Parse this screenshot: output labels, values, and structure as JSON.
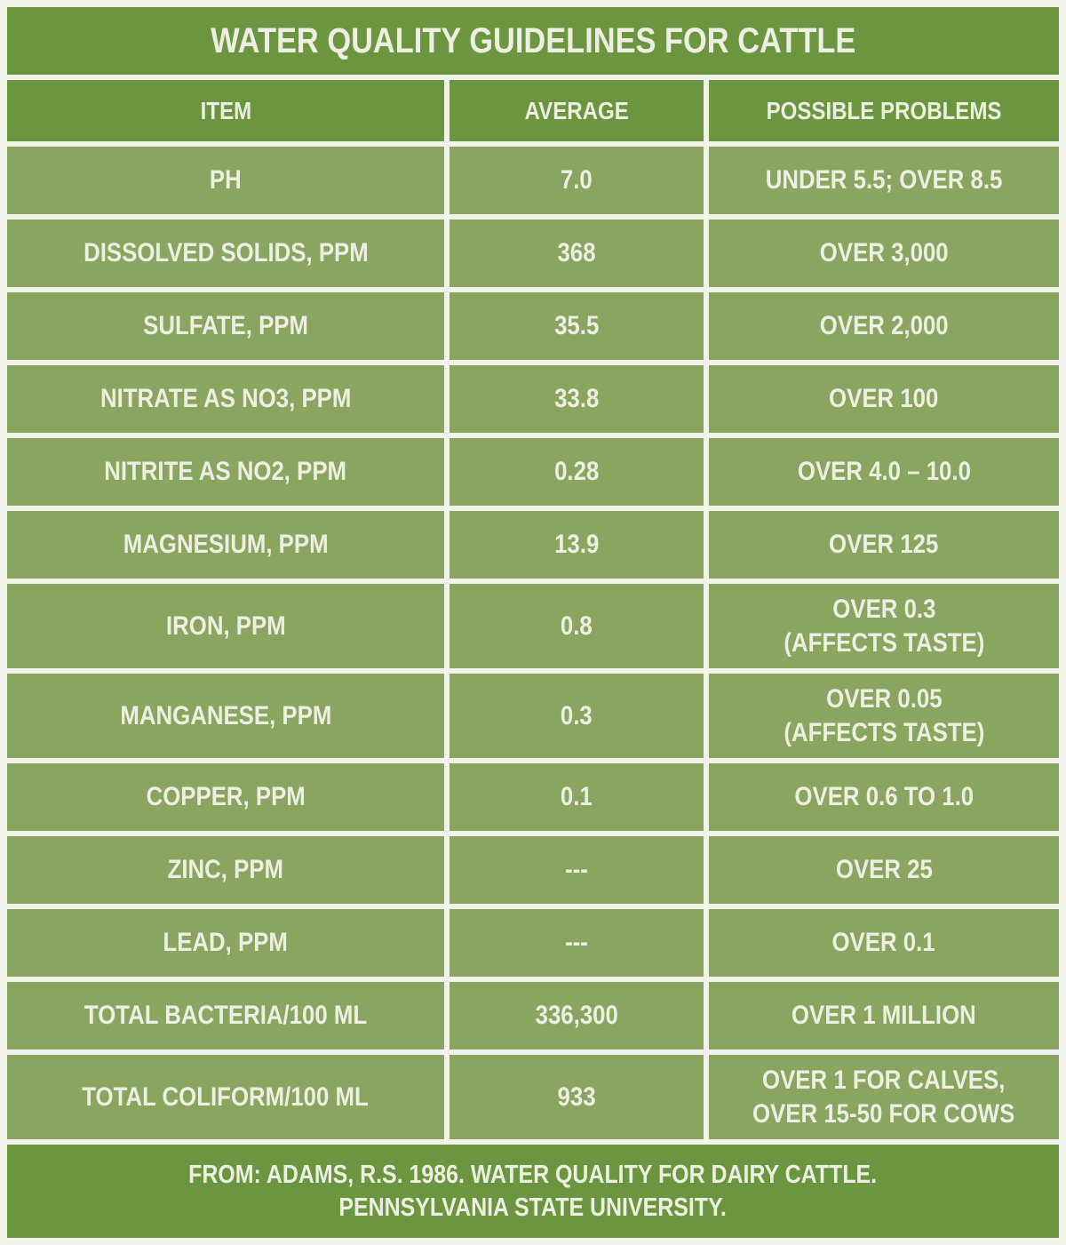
{
  "colors": {
    "band_green": "#6B953F",
    "cell_green": "#8AA55F",
    "gap_offwhite": "#F1F2EA",
    "text_offwhite": "#EDEFE2"
  },
  "chart_data": {
    "type": "table",
    "title": "WATER QUALITY GUIDELINES FOR CATTLE",
    "columns": [
      "ITEM",
      "AVERAGE",
      "POSSIBLE PROBLEMS"
    ],
    "rows": [
      {
        "item": "PH",
        "average": "7.0",
        "problems": "UNDER 5.5; OVER 8.5"
      },
      {
        "item": "DISSOLVED SOLIDS, PPM",
        "average": "368",
        "problems": "OVER 3,000"
      },
      {
        "item": "SULFATE, PPM",
        "average": "35.5",
        "problems": "OVER 2,000"
      },
      {
        "item": "NITRATE AS NO3, PPM",
        "average": "33.8",
        "problems": "OVER 100"
      },
      {
        "item": "NITRITE AS NO2, PPM",
        "average": "0.28",
        "problems": "OVER 4.0 – 10.0"
      },
      {
        "item": "MAGNESIUM, PPM",
        "average": "13.9",
        "problems": "OVER 125"
      },
      {
        "item": "IRON, PPM",
        "average": "0.8",
        "problems": "OVER 0.3\n(AFFECTS TASTE)"
      },
      {
        "item": "MANGANESE, PPM",
        "average": "0.3",
        "problems": "OVER 0.05\n(AFFECTS TASTE)"
      },
      {
        "item": "COPPER, PPM",
        "average": "0.1",
        "problems": "OVER 0.6 TO 1.0"
      },
      {
        "item": "ZINC, PPM",
        "average": "---",
        "problems": "OVER 25"
      },
      {
        "item": "LEAD, PPM",
        "average": "---",
        "problems": "OVER 0.1"
      },
      {
        "item": "TOTAL BACTERIA/100 ML",
        "average": "336,300",
        "problems": "OVER 1 MILLION"
      },
      {
        "item": "TOTAL COLIFORM/100 ML",
        "average": "933",
        "problems": "OVER 1 FOR CALVES,\nOVER 15-50 FOR COWS"
      }
    ],
    "footer": "FROM: ADAMS, R.S. 1986. WATER QUALITY FOR DAIRY CATTLE.\nPENNSYLVANIA STATE UNIVERSITY.",
    "layout": {
      "grid": "off",
      "header_position": "top"
    }
  }
}
